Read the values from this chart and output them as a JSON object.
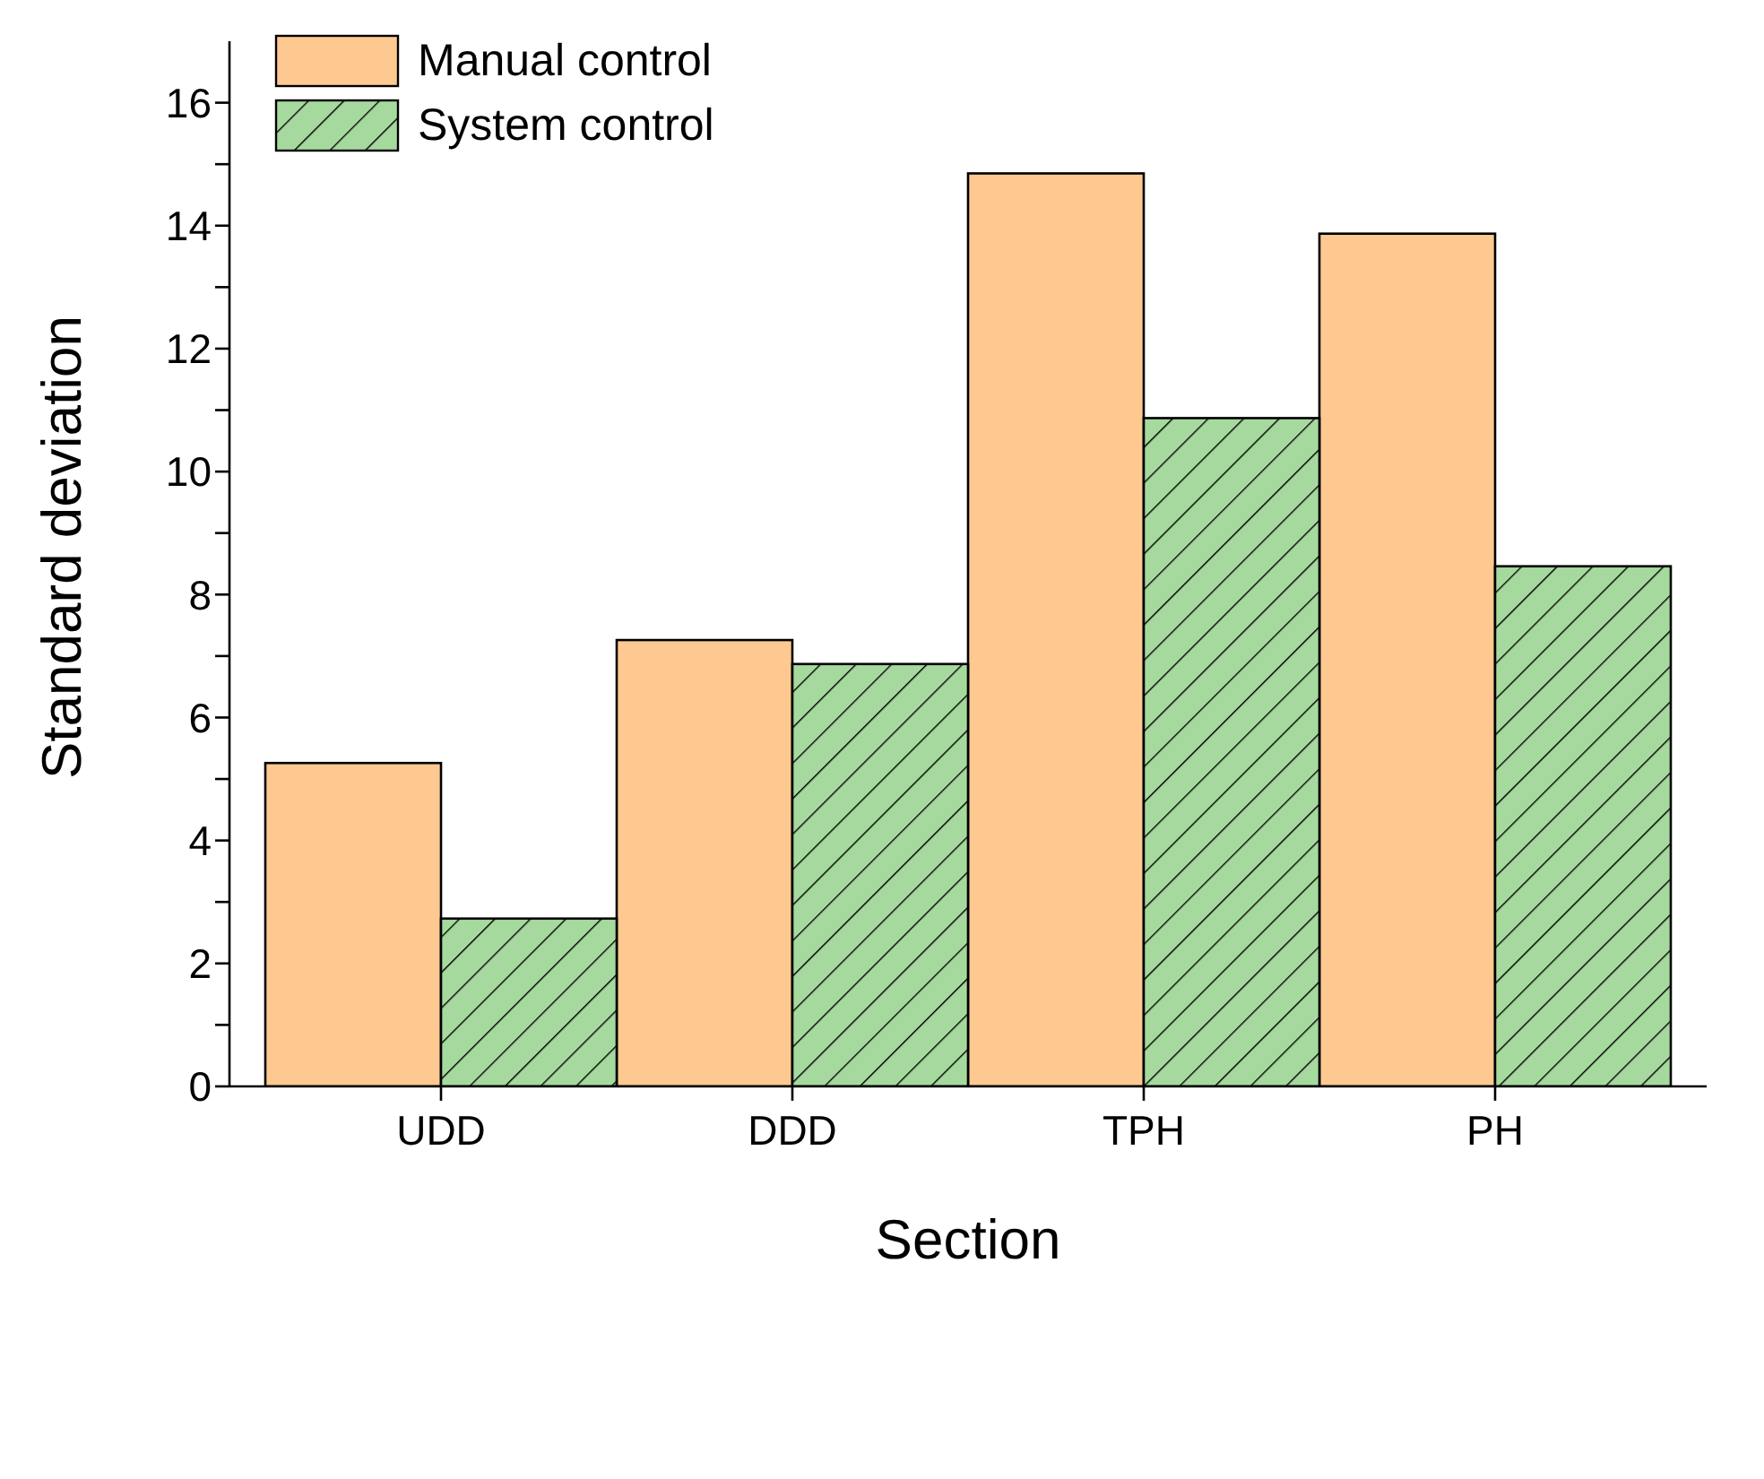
{
  "chart_data": {
    "type": "bar",
    "xlabel": "Section",
    "ylabel": "Standard deviation",
    "categories": [
      "UDD",
      "DDD",
      "TPH",
      "PH"
    ],
    "series": [
      {
        "name": "Manual control",
        "color": "#fec991",
        "values": [
          5.26,
          7.26,
          14.85,
          13.87
        ]
      },
      {
        "name": "System control",
        "color": "#a6d99e",
        "values": [
          2.73,
          6.87,
          10.87,
          8.46
        ]
      }
    ],
    "ylim": [
      0,
      17
    ],
    "yticks": [
      0,
      {
        "value": 1,
        "label": null
      },
      2,
      {
        "value": 3,
        "label": null
      },
      4,
      {
        "value": 5,
        "label": null
      },
      6,
      {
        "value": 7,
        "label": null
      },
      8,
      {
        "value": 9,
        "label": null
      },
      10,
      {
        "value": 11,
        "label": null
      },
      12,
      {
        "value": 13,
        "label": null
      },
      14,
      {
        "value": 15,
        "label": null
      },
      16
    ],
    "grid": false,
    "legend": "top left"
  }
}
